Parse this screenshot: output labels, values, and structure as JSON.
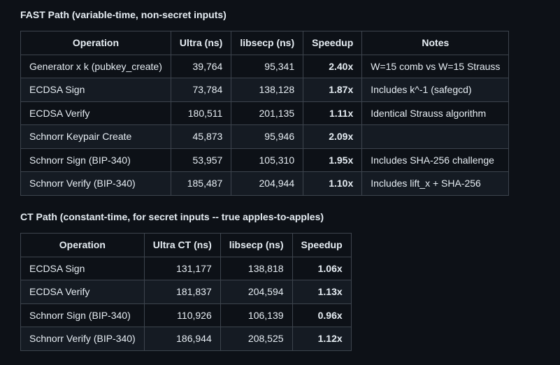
{
  "fast": {
    "title": "FAST Path (variable-time, non-secret inputs)",
    "headers": [
      "Operation",
      "Ultra (ns)",
      "libsecp (ns)",
      "Speedup",
      "Notes"
    ],
    "rows": [
      [
        "Generator x k (pubkey_create)",
        "39,764",
        "95,341",
        "2.40x",
        "W=15 comb vs W=15 Strauss"
      ],
      [
        "ECDSA Sign",
        "73,784",
        "138,128",
        "1.87x",
        "Includes k^-1 (safegcd)"
      ],
      [
        "ECDSA Verify",
        "180,511",
        "201,135",
        "1.11x",
        "Identical Strauss algorithm"
      ],
      [
        "Schnorr Keypair Create",
        "45,873",
        "95,946",
        "2.09x",
        ""
      ],
      [
        "Schnorr Sign (BIP-340)",
        "53,957",
        "105,310",
        "1.95x",
        "Includes SHA-256 challenge"
      ],
      [
        "Schnorr Verify (BIP-340)",
        "185,487",
        "204,944",
        "1.10x",
        "Includes lift_x + SHA-256"
      ]
    ]
  },
  "ct": {
    "title": "CT Path (constant-time, for secret inputs -- true apples-to-apples)",
    "headers": [
      "Operation",
      "Ultra CT (ns)",
      "libsecp (ns)",
      "Speedup"
    ],
    "rows": [
      [
        "ECDSA Sign",
        "131,177",
        "138,818",
        "1.06x"
      ],
      [
        "ECDSA Verify",
        "181,837",
        "204,594",
        "1.13x"
      ],
      [
        "Schnorr Sign (BIP-340)",
        "110,926",
        "106,139",
        "0.96x"
      ],
      [
        "Schnorr Verify (BIP-340)",
        "186,944",
        "208,525",
        "1.12x"
      ]
    ]
  }
}
